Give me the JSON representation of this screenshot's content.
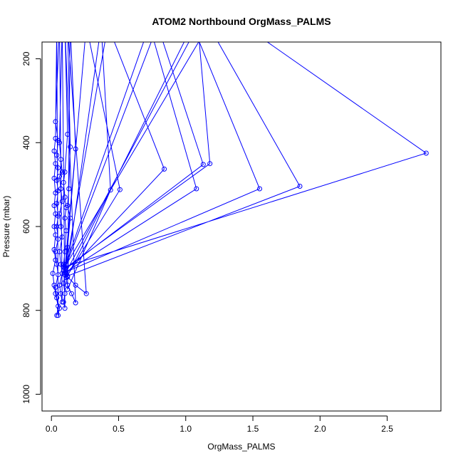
{
  "chart_data": {
    "type": "line",
    "title": "ATOM2 Northbound OrgMass_PALMS",
    "xlabel": "OrgMass_PALMS",
    "ylabel": "Pressure (mbar)",
    "xlim": [
      -0.07,
      2.9
    ],
    "ylim": [
      1040,
      160
    ],
    "y_reversed": true,
    "x_ticks": [
      0.0,
      0.5,
      1.0,
      1.5,
      2.0,
      2.5
    ],
    "x_tick_labels": [
      "0.0",
      "0.5",
      "1.0",
      "1.5",
      "2.0",
      "2.5"
    ],
    "y_ticks": [
      200,
      400,
      600,
      800,
      1000
    ],
    "y_tick_labels": [
      "200",
      "400",
      "600",
      "800",
      "1000"
    ],
    "grid": false,
    "series": [
      {
        "color": "#0000ff",
        "marker": "open-circle",
        "line": true,
        "points": [
          [
            0.04,
            812
          ],
          [
            0.05,
            790
          ],
          [
            0.03,
            760
          ],
          [
            0.02,
            740
          ],
          [
            0.01,
            712
          ],
          [
            0.03,
            680
          ],
          [
            0.02,
            655
          ],
          [
            0.03,
            620
          ],
          [
            0.02,
            600
          ],
          [
            0.03,
            570
          ],
          [
            0.02,
            550
          ],
          [
            0.03,
            520
          ],
          [
            0.02,
            485
          ],
          [
            0.03,
            450
          ],
          [
            0.02,
            420
          ],
          [
            0.03,
            390
          ],
          [
            0.04,
            120
          ],
          [
            0.05,
            812
          ],
          [
            0.06,
            795
          ],
          [
            0.04,
            770
          ],
          [
            0.03,
            745
          ],
          [
            0.05,
            715
          ],
          [
            0.04,
            690
          ],
          [
            0.03,
            660
          ],
          [
            0.05,
            630
          ],
          [
            0.04,
            600
          ],
          [
            0.05,
            575
          ],
          [
            0.04,
            545
          ],
          [
            0.05,
            515
          ],
          [
            0.04,
            490
          ],
          [
            0.05,
            460
          ],
          [
            0.04,
            430
          ],
          [
            0.05,
            395
          ],
          [
            0.03,
            350
          ],
          [
            0.06,
            120
          ],
          [
            0.08,
            780
          ],
          [
            0.07,
            760
          ],
          [
            0.06,
            740
          ],
          [
            0.08,
            712
          ],
          [
            0.07,
            690
          ],
          [
            0.06,
            660
          ],
          [
            0.08,
            625
          ],
          [
            0.07,
            600
          ],
          [
            0.06,
            570
          ],
          [
            0.08,
            540
          ],
          [
            0.07,
            510
          ],
          [
            0.06,
            480
          ],
          [
            0.08,
            470
          ],
          [
            0.07,
            440
          ],
          [
            0.06,
            400
          ],
          [
            0.08,
            120
          ],
          [
            0.1,
            795
          ],
          [
            0.09,
            780
          ],
          [
            0.1,
            760
          ],
          [
            0.09,
            735
          ],
          [
            0.1,
            715
          ],
          [
            0.09,
            690
          ],
          [
            0.1,
            660
          ],
          [
            0.11,
            610
          ],
          [
            0.1,
            580
          ],
          [
            0.11,
            555
          ],
          [
            0.1,
            530
          ],
          [
            0.09,
            495
          ],
          [
            0.1,
            470
          ],
          [
            0.12,
            380
          ],
          [
            0.1,
            120
          ],
          [
            0.18,
            782
          ],
          [
            0.15,
            760
          ],
          [
            0.12,
            740
          ],
          [
            0.1,
            715
          ],
          [
            0.11,
            690
          ],
          [
            0.12,
            650
          ],
          [
            0.14,
            580
          ],
          [
            0.12,
            550
          ],
          [
            0.13,
            510
          ],
          [
            0.14,
            410
          ],
          [
            0.12,
            120
          ],
          [
            0.26,
            760
          ],
          [
            0.18,
            740
          ],
          [
            0.12,
            720
          ],
          [
            0.1,
            700
          ],
          [
            0.18,
            415
          ],
          [
            0.14,
            120
          ],
          [
            0.12,
            750
          ],
          [
            0.44,
            513
          ],
          [
            0.37,
            120
          ],
          [
            0.11,
            722
          ],
          [
            0.51,
            512
          ],
          [
            0.26,
            120
          ],
          [
            0.1,
            715
          ],
          [
            0.84,
            463
          ],
          [
            0.42,
            120
          ],
          [
            0.1,
            710
          ],
          [
            1.08,
            510
          ],
          [
            0.73,
            120
          ],
          [
            0.09,
            705
          ],
          [
            1.13,
            452
          ],
          [
            0.79,
            120
          ],
          [
            0.1,
            700
          ],
          [
            1.18,
            450
          ],
          [
            1.09,
            120
          ],
          [
            0.11,
            708
          ],
          [
            1.55,
            510
          ],
          [
            1.05,
            120
          ],
          [
            0.12,
            718
          ],
          [
            1.85,
            504
          ],
          [
            1.17,
            120
          ],
          [
            0.1,
            696
          ],
          [
            2.79,
            425
          ],
          [
            1.43,
            120
          ]
        ]
      }
    ]
  }
}
